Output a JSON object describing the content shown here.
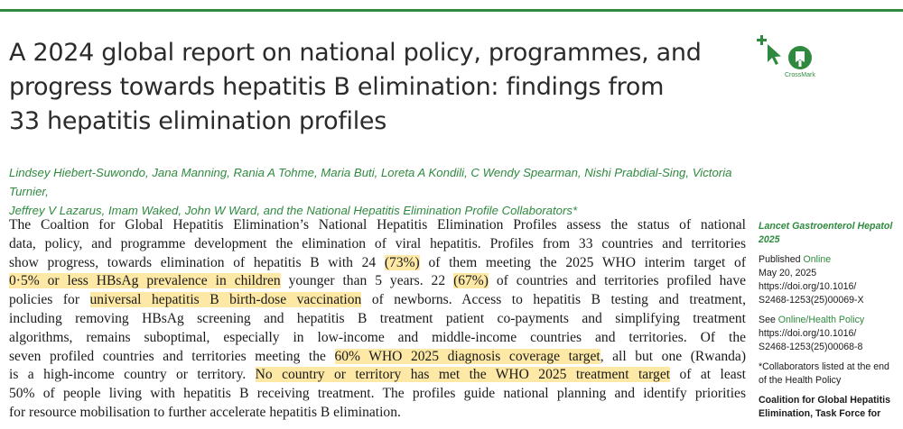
{
  "title_lines": [
    "A 2024 global report on national policy, programmes, and",
    "progress towards hepatitis B elimination: findings from",
    "33 hepatitis elimination profiles"
  ],
  "crossmark_label": "CrossMark",
  "authors_lines": [
    "Lindsey Hiebert-Suwondo, Jana Manning, Rania A Tohme, Maria Buti, Loreta A Kondili, C Wendy Spearman, Nishi Prabdial-Sing, Victoria Turnier,",
    "Jeffrey V Lazarus, Imam Waked, John W Ward, and the National Hepatitis Elimination Profile Collaborators*"
  ],
  "abstract": {
    "l1": "The Coaltion for Global Hepatitis Elimination’s National Hepatitis Elimination Profiles assess the status of national",
    "l2": "data, policy, and programme development the elimination of viral hepatitis. Profiles from 33 countries and territories",
    "l3a": "show progress, towards elimination of hepatitis B with 24",
    "l3h": "(73%)",
    "l3b": "of them meeting the 2025 WHO interim target of",
    "l4h": "0·5% or less HBsAg prevalence in children",
    "l4b": "younger than 5 years. 22",
    "l4h2": "(67%)",
    "l4c": "of countries and territories profiled have",
    "l5a": "policies for",
    "l5h": "universal hepatitis B birth-dose vaccination",
    "l5b": "of newborns. Access to hepatitis B testing and treatment,",
    "l6": "including removing HBsAg screening and hepatitis B treatment patient co-payments and simplifying treatment",
    "l7": "algorithms, remains suboptimal, especially in low-income and middle-income countries and territories. Of the",
    "l8a": "seven profiled countries and territories meeting the",
    "l8h": "60% WHO 2025 diagnosis coverage target",
    "l8b": ", all but one (Rwanda)",
    "l9a": "is a high-income country or territory.",
    "l9h": "No country or territory has met the WHO 2025 treatment target",
    "l9b": "of at least",
    "l10": "50% of people living with hepatitis B receiving treatment. The profiles guide national planning and identify priorities",
    "l11": "for resource mobilisation to further accelerate hepatitis B elimination."
  },
  "sidebar": {
    "journal": "Lancet Gastroenterol Hepatol",
    "year": "2025",
    "published_prefix": "Published ",
    "published_link": "Online",
    "date": "May 20, 2025",
    "doi1a": "https://doi.org/10.1016/",
    "doi1b": "S2468-1253(25)00069-X",
    "see_prefix": "See ",
    "see_link": "Online/Health Policy",
    "doi2a": "https://doi.org/10.1016/",
    "doi2b": "S2468-1253(25)00068-8",
    "collab_1": "*Collaborators listed at the end",
    "collab_2": "of the Health Policy",
    "affil_1": "Coalition for Global Hepatitis",
    "affil_2": "Elimination, Task Force for"
  },
  "colors": {
    "accent_green": "#2f8a3f",
    "highlight": "#fde8a6"
  }
}
